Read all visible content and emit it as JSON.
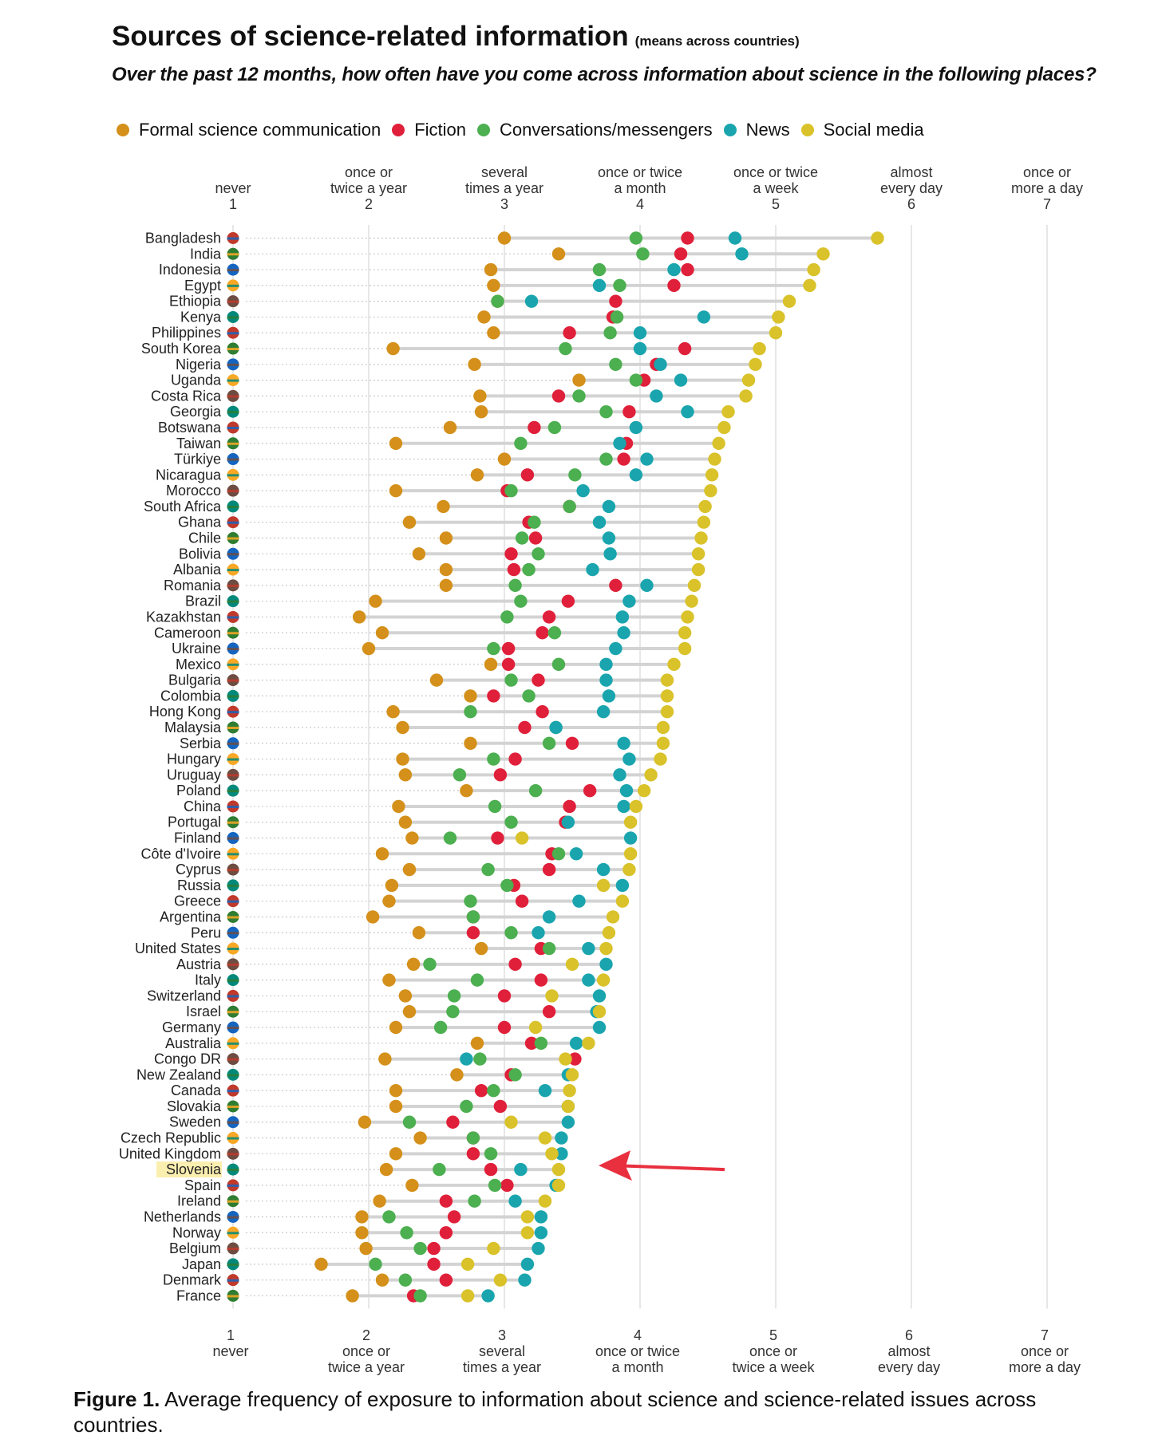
{
  "title": "Sources of science-related information",
  "title_note": "(means across countries)",
  "question": "Over the past 12 months, how often have you come across information about science in the following places?",
  "caption": {
    "label": "Figure 1.",
    "text": " Average frequency of exposure to information about science and science-related issues across countries."
  },
  "colors": {
    "formal": "#D4901A",
    "fiction": "#E0203A",
    "conversations": "#4CAF50",
    "news": "#1AA5AE",
    "social": "#D9C22A",
    "highlight": "#FBEFB0",
    "arrow": "#E8303F"
  },
  "chart_data": {
    "type": "scatter",
    "xlim": [
      1,
      7
    ],
    "x_ticks": [
      {
        "value": 1,
        "top_label": [
          "never",
          "1"
        ],
        "bottom_label": [
          "1",
          "never"
        ]
      },
      {
        "value": 2,
        "top_label": [
          "once or",
          "twice a year",
          "2"
        ],
        "bottom_label": [
          "2",
          "once or",
          "twice a year"
        ]
      },
      {
        "value": 3,
        "top_label": [
          "several",
          "times a year",
          "3"
        ],
        "bottom_label": [
          "3",
          "several",
          "times a year"
        ]
      },
      {
        "value": 4,
        "top_label": [
          "once or twice",
          "a month",
          "4"
        ],
        "bottom_label": [
          "4",
          "once or twice",
          "a month"
        ]
      },
      {
        "value": 5,
        "top_label": [
          "once or twice",
          "a week",
          "5"
        ],
        "bottom_label": [
          "5",
          "once or",
          "twice a week"
        ]
      },
      {
        "value": 6,
        "top_label": [
          "almost",
          "every day",
          "6"
        ],
        "bottom_label": [
          "6",
          "almost",
          "every day"
        ]
      },
      {
        "value": 7,
        "top_label": [
          "once or",
          "more a day",
          "7"
        ],
        "bottom_label": [
          "7",
          "once or",
          "more a day"
        ]
      }
    ],
    "series": [
      {
        "key": "formal",
        "name": "Formal science communication"
      },
      {
        "key": "fiction",
        "name": "Fiction"
      },
      {
        "key": "conversations",
        "name": "Conversations/messengers"
      },
      {
        "key": "news",
        "name": "News"
      },
      {
        "key": "social",
        "name": "Social media"
      }
    ],
    "highlighted_country": "Slovenia",
    "countries": [
      {
        "name": "Bangladesh",
        "formal": 3.0,
        "fiction": 4.35,
        "conversations": 3.97,
        "news": 4.7,
        "social": 5.75
      },
      {
        "name": "India",
        "formal": 3.4,
        "fiction": 4.3,
        "conversations": 4.02,
        "news": 4.75,
        "social": 5.35
      },
      {
        "name": "Indonesia",
        "formal": 2.9,
        "fiction": 4.35,
        "conversations": 3.7,
        "news": 4.25,
        "social": 5.28
      },
      {
        "name": "Egypt",
        "formal": 2.92,
        "fiction": 4.25,
        "conversations": 3.85,
        "news": 3.7,
        "social": 5.25
      },
      {
        "name": "Ethiopia",
        "formal": 2.95,
        "fiction": 3.82,
        "conversations": 2.95,
        "news": 3.2,
        "social": 5.1
      },
      {
        "name": "Kenya",
        "formal": 2.85,
        "fiction": 3.8,
        "conversations": 3.83,
        "news": 4.47,
        "social": 5.02
      },
      {
        "name": "Philippines",
        "formal": 2.92,
        "fiction": 3.48,
        "conversations": 3.78,
        "news": 4.0,
        "social": 5.0
      },
      {
        "name": "South Korea",
        "formal": 2.18,
        "fiction": 4.33,
        "conversations": 3.45,
        "news": 4.0,
        "social": 4.88
      },
      {
        "name": "Nigeria",
        "formal": 2.78,
        "fiction": 4.12,
        "conversations": 3.82,
        "news": 4.15,
        "social": 4.85
      },
      {
        "name": "Uganda",
        "formal": 3.55,
        "fiction": 4.03,
        "conversations": 3.97,
        "news": 4.3,
        "social": 4.8
      },
      {
        "name": "Costa Rica",
        "formal": 2.82,
        "fiction": 3.4,
        "conversations": 3.55,
        "news": 4.12,
        "social": 4.78
      },
      {
        "name": "Georgia",
        "formal": 2.83,
        "fiction": 3.92,
        "conversations": 3.75,
        "news": 4.35,
        "social": 4.65
      },
      {
        "name": "Botswana",
        "formal": 2.6,
        "fiction": 3.22,
        "conversations": 3.37,
        "news": 3.97,
        "social": 4.62
      },
      {
        "name": "Taiwan",
        "formal": 2.2,
        "fiction": 3.9,
        "conversations": 3.12,
        "news": 3.85,
        "social": 4.58
      },
      {
        "name": "Türkiye",
        "formal": 3.0,
        "fiction": 3.88,
        "conversations": 3.75,
        "news": 4.05,
        "social": 4.55
      },
      {
        "name": "Nicaragua",
        "formal": 2.8,
        "fiction": 3.17,
        "conversations": 3.52,
        "news": 3.97,
        "social": 4.53
      },
      {
        "name": "Morocco",
        "formal": 2.2,
        "fiction": 3.02,
        "conversations": 3.05,
        "news": 3.58,
        "social": 4.52
      },
      {
        "name": "South Africa",
        "formal": 2.55,
        "fiction": 3.48,
        "conversations": 3.48,
        "news": 3.77,
        "social": 4.48
      },
      {
        "name": "Ghana",
        "formal": 2.3,
        "fiction": 3.18,
        "conversations": 3.22,
        "news": 3.7,
        "social": 4.47
      },
      {
        "name": "Chile",
        "formal": 2.57,
        "fiction": 3.23,
        "conversations": 3.13,
        "news": 3.77,
        "social": 4.45
      },
      {
        "name": "Bolivia",
        "formal": 2.37,
        "fiction": 3.05,
        "conversations": 3.25,
        "news": 3.78,
        "social": 4.43
      },
      {
        "name": "Albania",
        "formal": 2.57,
        "fiction": 3.07,
        "conversations": 3.18,
        "news": 3.65,
        "social": 4.43
      },
      {
        "name": "Romania",
        "formal": 2.57,
        "fiction": 3.82,
        "conversations": 3.08,
        "news": 4.05,
        "social": 4.4
      },
      {
        "name": "Brazil",
        "formal": 2.05,
        "fiction": 3.47,
        "conversations": 3.12,
        "news": 3.92,
        "social": 4.38
      },
      {
        "name": "Kazakhstan",
        "formal": 1.93,
        "fiction": 3.33,
        "conversations": 3.02,
        "news": 3.87,
        "social": 4.35
      },
      {
        "name": "Cameroon",
        "formal": 2.1,
        "fiction": 3.28,
        "conversations": 3.37,
        "news": 3.88,
        "social": 4.33
      },
      {
        "name": "Ukraine",
        "formal": 2.0,
        "fiction": 3.03,
        "conversations": 2.92,
        "news": 3.82,
        "social": 4.33
      },
      {
        "name": "Mexico",
        "formal": 2.9,
        "fiction": 3.03,
        "conversations": 3.4,
        "news": 3.75,
        "social": 4.25
      },
      {
        "name": "Bulgaria",
        "formal": 2.5,
        "fiction": 3.25,
        "conversations": 3.05,
        "news": 3.75,
        "social": 4.2
      },
      {
        "name": "Colombia",
        "formal": 2.75,
        "fiction": 2.92,
        "conversations": 3.18,
        "news": 3.77,
        "social": 4.2
      },
      {
        "name": "Hong Kong",
        "formal": 2.18,
        "fiction": 3.28,
        "conversations": 2.75,
        "news": 3.73,
        "social": 4.2
      },
      {
        "name": "Malaysia",
        "formal": 2.25,
        "fiction": 3.15,
        "conversations": 3.38,
        "news": 3.38,
        "social": 4.17
      },
      {
        "name": "Serbia",
        "formal": 2.75,
        "fiction": 3.5,
        "conversations": 3.33,
        "news": 3.88,
        "social": 4.17
      },
      {
        "name": "Hungary",
        "formal": 2.25,
        "fiction": 3.08,
        "conversations": 2.92,
        "news": 3.92,
        "social": 4.15
      },
      {
        "name": "Uruguay",
        "formal": 2.27,
        "fiction": 2.97,
        "conversations": 2.67,
        "news": 3.85,
        "social": 4.08
      },
      {
        "name": "Poland",
        "formal": 2.72,
        "fiction": 3.63,
        "conversations": 3.23,
        "news": 3.9,
        "social": 4.03
      },
      {
        "name": "China",
        "formal": 2.22,
        "fiction": 3.48,
        "conversations": 2.93,
        "news": 3.88,
        "social": 3.97
      },
      {
        "name": "Portugal",
        "formal": 2.27,
        "fiction": 3.45,
        "conversations": 3.05,
        "news": 3.47,
        "social": 3.93
      },
      {
        "name": "Finland",
        "formal": 2.32,
        "fiction": 2.95,
        "conversations": 2.6,
        "news": 3.93,
        "social": 3.13
      },
      {
        "name": "Côte d'Ivoire",
        "formal": 2.1,
        "fiction": 3.35,
        "conversations": 3.4,
        "news": 3.53,
        "social": 3.93
      },
      {
        "name": "Cyprus",
        "formal": 2.3,
        "fiction": 3.33,
        "conversations": 2.88,
        "news": 3.73,
        "social": 3.92
      },
      {
        "name": "Russia",
        "formal": 2.17,
        "fiction": 3.07,
        "conversations": 3.02,
        "news": 3.87,
        "social": 3.73
      },
      {
        "name": "Greece",
        "formal": 2.15,
        "fiction": 3.13,
        "conversations": 2.75,
        "news": 3.55,
        "social": 3.87
      },
      {
        "name": "Argentina",
        "formal": 2.03,
        "fiction": 2.77,
        "conversations": 2.77,
        "news": 3.33,
        "social": 3.8
      },
      {
        "name": "Peru",
        "formal": 2.37,
        "fiction": 2.77,
        "conversations": 3.05,
        "news": 3.25,
        "social": 3.77
      },
      {
        "name": "United States",
        "formal": 2.83,
        "fiction": 3.27,
        "conversations": 3.33,
        "news": 3.62,
        "social": 3.75
      },
      {
        "name": "Austria",
        "formal": 2.33,
        "fiction": 3.08,
        "conversations": 2.45,
        "news": 3.75,
        "social": 3.5
      },
      {
        "name": "Italy",
        "formal": 2.15,
        "fiction": 3.27,
        "conversations": 2.8,
        "news": 3.62,
        "social": 3.73
      },
      {
        "name": "Switzerland",
        "formal": 2.27,
        "fiction": 3.0,
        "conversations": 2.63,
        "news": 3.7,
        "social": 3.35
      },
      {
        "name": "Israel",
        "formal": 2.3,
        "fiction": 3.33,
        "conversations": 2.62,
        "news": 3.68,
        "social": 3.7
      },
      {
        "name": "Germany",
        "formal": 2.2,
        "fiction": 3.0,
        "conversations": 2.53,
        "news": 3.7,
        "social": 3.23
      },
      {
        "name": "Australia",
        "formal": 2.8,
        "fiction": 3.2,
        "conversations": 3.27,
        "news": 3.53,
        "social": 3.62
      },
      {
        "name": "Congo DR",
        "formal": 2.12,
        "fiction": 3.52,
        "conversations": 2.82,
        "news": 2.72,
        "social": 3.45
      },
      {
        "name": "New Zealand",
        "formal": 2.65,
        "fiction": 3.05,
        "conversations": 3.08,
        "news": 3.47,
        "social": 3.5
      },
      {
        "name": "Canada",
        "formal": 2.2,
        "fiction": 2.83,
        "conversations": 2.92,
        "news": 3.3,
        "social": 3.48
      },
      {
        "name": "Slovakia",
        "formal": 2.2,
        "fiction": 2.97,
        "conversations": 2.72,
        "news": 3.47,
        "social": 3.47
      },
      {
        "name": "Sweden",
        "formal": 1.97,
        "fiction": 2.62,
        "conversations": 2.3,
        "news": 3.47,
        "social": 3.05
      },
      {
        "name": "Czech Republic",
        "formal": 2.38,
        "fiction": 2.77,
        "conversations": 2.77,
        "news": 3.42,
        "social": 3.3
      },
      {
        "name": "United Kingdom",
        "formal": 2.2,
        "fiction": 2.77,
        "conversations": 2.9,
        "news": 3.42,
        "social": 3.35
      },
      {
        "name": "Slovenia",
        "formal": 2.13,
        "fiction": 2.9,
        "conversations": 2.52,
        "news": 3.12,
        "social": 3.4
      },
      {
        "name": "Spain",
        "formal": 2.32,
        "fiction": 3.02,
        "conversations": 2.93,
        "news": 3.38,
        "social": 3.4
      },
      {
        "name": "Ireland",
        "formal": 2.08,
        "fiction": 2.57,
        "conversations": 2.78,
        "news": 3.08,
        "social": 3.3
      },
      {
        "name": "Netherlands",
        "formal": 1.95,
        "fiction": 2.63,
        "conversations": 2.15,
        "news": 3.27,
        "social": 3.17
      },
      {
        "name": "Norway",
        "formal": 1.95,
        "fiction": 2.57,
        "conversations": 2.28,
        "news": 3.27,
        "social": 3.17
      },
      {
        "name": "Belgium",
        "formal": 1.98,
        "fiction": 2.48,
        "conversations": 2.38,
        "news": 3.25,
        "social": 2.92
      },
      {
        "name": "Japan",
        "formal": 1.65,
        "fiction": 2.48,
        "conversations": 2.05,
        "news": 3.17,
        "social": 2.73
      },
      {
        "name": "Denmark",
        "formal": 2.1,
        "fiction": 2.57,
        "conversations": 2.27,
        "news": 3.15,
        "social": 2.97
      },
      {
        "name": "France",
        "formal": 1.88,
        "fiction": 2.33,
        "conversations": 2.38,
        "news": 2.88,
        "social": 2.73
      }
    ]
  }
}
